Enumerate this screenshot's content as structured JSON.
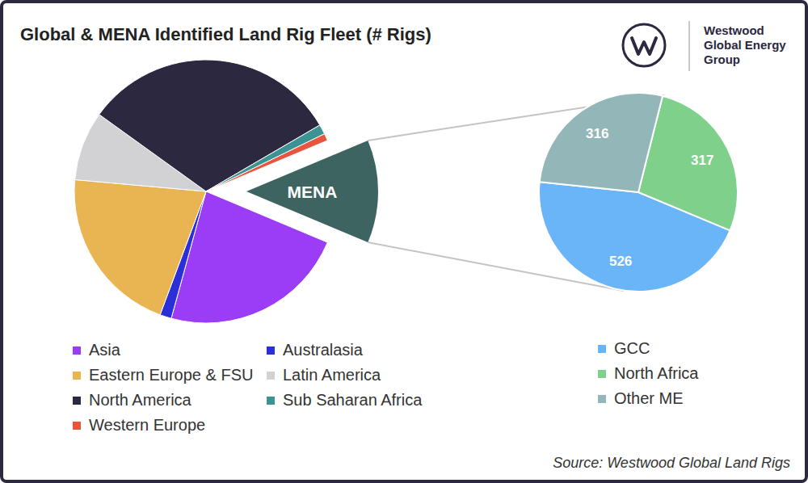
{
  "title": "Global & MENA Identified Land Rig Fleet (# Rigs)",
  "source": "Source: Westwood Global Land Rigs",
  "logo": [
    "Westwood",
    "Global Energy",
    "Group"
  ],
  "chart_data": [
    {
      "type": "pie",
      "categories": [
        "MENA",
        "Asia",
        "Australasia",
        "Eastern Europe & FSU",
        "Latin America",
        "North America",
        "Sub Saharan Africa",
        "Western Europe"
      ],
      "values": [
        1159,
        2100,
        130,
        1900,
        780,
        2900,
        110,
        80
      ],
      "colors": [
        "#3d6461",
        "#9b3cf6",
        "#2a2fd8",
        "#e9b552",
        "#d2d2d4",
        "#2b2840",
        "#3b9393",
        "#e8553e"
      ],
      "legend": "bottom",
      "data_labels": false
    },
    {
      "type": "pie",
      "categories": [
        "GCC",
        "North Africa",
        "Other ME"
      ],
      "values": [
        526,
        317,
        316
      ],
      "colors": [
        "#6ab5f7",
        "#7fd08b",
        "#93b7b8"
      ],
      "legend": "bottom",
      "data_labels": true
    }
  ]
}
